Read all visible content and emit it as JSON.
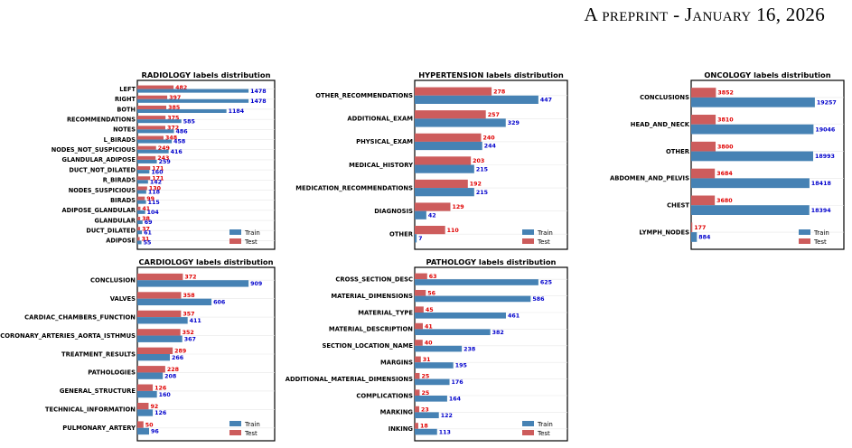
{
  "header": {
    "text": "A preprint - January 16, 2026"
  },
  "colors": {
    "train": "#4682b4",
    "test": "#cd5c5c",
    "train_label": "#0000cc",
    "test_label": "#e00000"
  },
  "chart_data": [
    {
      "type": "bar",
      "orientation": "horizontal",
      "title": "RADIOLOGY labels distribution",
      "legend": {
        "position": "bottom-right",
        "entries": [
          "Train",
          "Test"
        ]
      },
      "grid": false,
      "categories": [
        "LEFT",
        "RIGHT",
        "BOTH",
        "RECOMMENDATIONS",
        "NOTES",
        "L_BIRADS",
        "NODES_NOT_SUSPICIOUS",
        "GLANDULAR_ADIPOSE",
        "DUCT_NOT_DILATED",
        "R_BIRADS",
        "NODES_SUSPICIOUS",
        "BIRADS",
        "ADIPOSE_GLANDULAR",
        "GLANDULAR",
        "DUCT_DILATED",
        "ADIPOSE"
      ],
      "series": [
        {
          "name": "Train",
          "values": [
            1478,
            1478,
            1184,
            585,
            486,
            458,
            416,
            259,
            160,
            142,
            118,
            115,
            104,
            69,
            61,
            55
          ]
        },
        {
          "name": "Test",
          "values": [
            482,
            397,
            385,
            375,
            372,
            348,
            249,
            243,
            171,
            171,
            130,
            99,
            41,
            38,
            37,
            31
          ]
        }
      ]
    },
    {
      "type": "bar",
      "orientation": "horizontal",
      "title": "HYPERTENSION labels distribution",
      "legend": {
        "position": "bottom-right",
        "entries": [
          "Train",
          "Test"
        ]
      },
      "grid": false,
      "categories": [
        "OTHER_RECOMMENDATIONS",
        "ADDITIONAL_EXAM",
        "PHYSICAL_EXAM",
        "MEDICAL_HISTORY",
        "MEDICATION_RECOMMENDATIONS",
        "DIAGNOSIS",
        "OTHER"
      ],
      "series": [
        {
          "name": "Train",
          "values": [
            447,
            329,
            244,
            215,
            215,
            42,
            7
          ]
        },
        {
          "name": "Test",
          "values": [
            278,
            257,
            240,
            203,
            192,
            129,
            110
          ]
        }
      ]
    },
    {
      "type": "bar",
      "orientation": "horizontal",
      "title": "ONCOLOGY labels distribution",
      "legend": {
        "position": "bottom-right",
        "entries": [
          "Train",
          "Test"
        ]
      },
      "grid": false,
      "categories": [
        "CONCLUSIONS",
        "HEAD_AND_NECK",
        "OTHER",
        "ABDOMEN_AND_PELVIS",
        "CHEST",
        "LYMPH_NODES"
      ],
      "series": [
        {
          "name": "Train",
          "values": [
            19257,
            19046,
            18993,
            18418,
            18394,
            884
          ]
        },
        {
          "name": "Test",
          "values": [
            3852,
            3810,
            3800,
            3684,
            3680,
            177
          ]
        }
      ]
    },
    {
      "type": "bar",
      "orientation": "horizontal",
      "title": "CARDIOLOGY labels distribution",
      "legend": {
        "position": "bottom-right",
        "entries": [
          "Train",
          "Test"
        ]
      },
      "grid": false,
      "categories": [
        "CONCLUSION",
        "VALVES",
        "CARDIAC_CHAMBERS_FUNCTION",
        "CORONARY_ARTERIES_AORTA_ISTHMUS",
        "TREATMENT_RESULTS",
        "PATHOLOGIES",
        "GENERAL_STRUCTURE",
        "TECHNICAL_INFORMATION",
        "PULMONARY_ARTERY"
      ],
      "series": [
        {
          "name": "Train",
          "values": [
            909,
            606,
            411,
            367,
            266,
            208,
            160,
            126,
            96
          ]
        },
        {
          "name": "Test",
          "values": [
            372,
            358,
            357,
            352,
            289,
            228,
            126,
            92,
            50
          ]
        }
      ]
    },
    {
      "type": "bar",
      "orientation": "horizontal",
      "title": "PATHOLOGY labels distribution",
      "legend": {
        "position": "bottom-right",
        "entries": [
          "Train",
          "Test"
        ]
      },
      "grid": false,
      "categories": [
        "CROSS_SECTION_DESC",
        "MATERIAL_DIMENSIONS",
        "MATERIAL_TYPE",
        "MATERIAL_DESCRIPTION",
        "SECTION_LOCATION_NAME",
        "MARGINS",
        "ADDITIONAL_MATERIAL_DIMENSIONS",
        "COMPLICATIONS",
        "MARKING",
        "INKING"
      ],
      "series": [
        {
          "name": "Train",
          "values": [
            625,
            586,
            461,
            382,
            238,
            195,
            176,
            164,
            122,
            113
          ]
        },
        {
          "name": "Test",
          "values": [
            63,
            56,
            45,
            41,
            40,
            31,
            25,
            25,
            23,
            18
          ]
        }
      ]
    }
  ]
}
